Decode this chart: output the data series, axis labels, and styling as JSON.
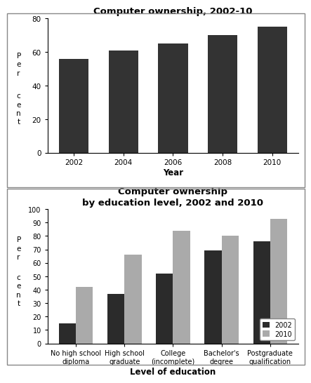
{
  "chart1": {
    "title": "Computer ownership, 2002-10",
    "years": [
      "2002",
      "2004",
      "2006",
      "2008",
      "2010"
    ],
    "values": [
      56,
      61,
      65,
      70,
      75
    ],
    "bar_color": "#333333",
    "xlabel": "Year",
    "ylim": [
      0,
      80
    ],
    "yticks": [
      0,
      20,
      40,
      60,
      80
    ]
  },
  "chart2": {
    "title": "Computer ownership\nby education level, 2002 and 2010",
    "categories": [
      "No high school\ndiploma",
      "High school\ngraduate",
      "College\n(incomplete)",
      "Bachelor's\ndegree",
      "Postgraduate\nqualification"
    ],
    "values_2002": [
      15,
      37,
      52,
      69,
      76
    ],
    "values_2010": [
      42,
      66,
      84,
      80,
      93
    ],
    "color_2002": "#2b2b2b",
    "color_2010": "#aaaaaa",
    "xlabel": "Level of education",
    "ylim": [
      0,
      100
    ],
    "yticks": [
      0,
      10,
      20,
      30,
      40,
      50,
      60,
      70,
      80,
      90,
      100
    ],
    "legend_2002": "2002",
    "legend_2010": "2010"
  },
  "bg_color": "#ffffff"
}
